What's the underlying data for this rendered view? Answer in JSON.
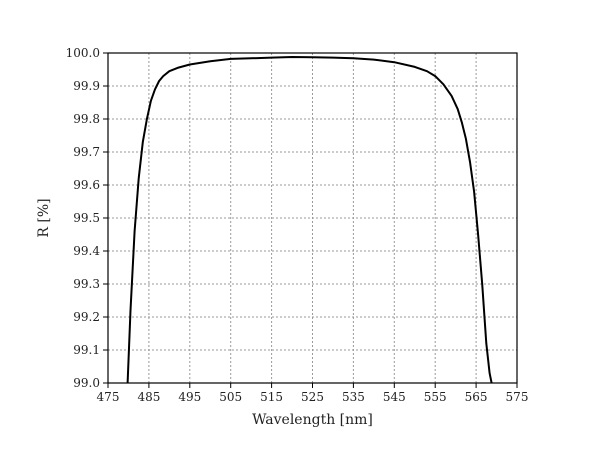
{
  "chart_data": {
    "type": "line",
    "title": "",
    "xlabel": "Wavelength [nm]",
    "ylabel": "R [%]",
    "xlim": [
      475,
      575
    ],
    "ylim": [
      99.0,
      100.0
    ],
    "grid": true,
    "xticks": [
      475,
      485,
      495,
      505,
      515,
      525,
      535,
      545,
      555,
      565,
      575
    ],
    "yticks": [
      99.0,
      99.1,
      99.2,
      99.3,
      99.4,
      99.5,
      99.6,
      99.7,
      99.8,
      99.9,
      100.0
    ],
    "xtick_labels": [
      "475",
      "485",
      "495",
      "505",
      "515",
      "525",
      "535",
      "545",
      "555",
      "565",
      "575"
    ],
    "ytick_labels": [
      "99.0",
      "99.1",
      "99.2",
      "99.3",
      "99.4",
      "99.5",
      "99.6",
      "99.7",
      "99.8",
      "99.9",
      "100.0"
    ],
    "series": [
      {
        "color": "#000000",
        "x": [
          479.8,
          480.5,
          481.5,
          482.5,
          483.5,
          484.5,
          485.5,
          486.5,
          487.5,
          488.5,
          490.0,
          492.0,
          495.0,
          500.0,
          505.0,
          510.0,
          515.0,
          520.0,
          525.0,
          530.0,
          535.0,
          540.0,
          545.0,
          550.0,
          553.0,
          555.0,
          557.0,
          559.0,
          560.5,
          561.5,
          562.5,
          563.5,
          564.5,
          565.5,
          566.5,
          567.5,
          568.3,
          568.8
        ],
        "y": [
          99.0,
          99.22,
          99.46,
          99.62,
          99.73,
          99.8,
          99.855,
          99.89,
          99.915,
          99.93,
          99.945,
          99.955,
          99.965,
          99.975,
          99.982,
          99.984,
          99.986,
          99.988,
          99.987,
          99.986,
          99.984,
          99.98,
          99.972,
          99.958,
          99.945,
          99.93,
          99.905,
          99.87,
          99.83,
          99.79,
          99.74,
          99.67,
          99.58,
          99.45,
          99.3,
          99.12,
          99.03,
          99.0
        ]
      }
    ]
  }
}
